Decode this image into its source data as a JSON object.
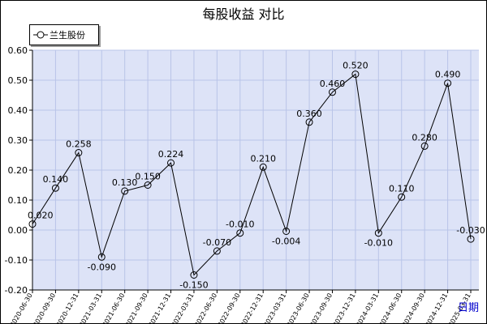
{
  "title": "每股收益  对比",
  "chart_data": {
    "type": "line",
    "title": "每股收益  对比",
    "xlabel": "日期",
    "ylabel": "",
    "ylim": [
      -0.2,
      0.6
    ],
    "yticks": [
      "-0.20",
      "-0.10",
      "0.00",
      "0.10",
      "0.20",
      "0.30",
      "0.40",
      "0.50",
      "0.60"
    ],
    "grid": true,
    "legend_position": "top-left",
    "categories": [
      "2020-06-30",
      "2020-09-30",
      "2020-12-31",
      "2021-03-31",
      "2021-06-30",
      "2021-09-30",
      "2021-12-31",
      "2022-03-31",
      "2022-06-30",
      "2022-09-30",
      "2022-12-31",
      "2023-03-31",
      "2023-06-30",
      "2023-09-30",
      "2023-12-31",
      "2024-03-31",
      "2024-06-30",
      "2024-09-30",
      "2024-12-31",
      "2025-03-31"
    ],
    "series": [
      {
        "name": "兰生股份",
        "values": [
          0.02,
          0.14,
          0.258,
          -0.09,
          0.13,
          0.15,
          0.224,
          -0.15,
          -0.07,
          -0.01,
          0.21,
          -0.004,
          0.36,
          0.46,
          0.52,
          -0.01,
          0.11,
          0.28,
          0.49,
          -0.03
        ],
        "labels": [
          "0.020",
          "0.140",
          "0.258",
          "-0.090",
          "0.130",
          "0.150",
          "0.224",
          "-0.150",
          "-0.070",
          "-0.010",
          "0.210",
          "-0.004",
          "0.360",
          "0.460",
          "0.520",
          "-0.010",
          "0.110",
          "0.280",
          "0.490",
          "-0.030"
        ]
      }
    ],
    "colors": {
      "plot_bg": "#dde3f7",
      "grid": "#b9c4e8",
      "line": "#000000",
      "xlabel": "#0000cc"
    }
  }
}
